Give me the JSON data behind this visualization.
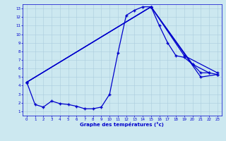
{
  "xlabel": "Graphe des températures (°c)",
  "bg_color": "#cce8f0",
  "line_color": "#0000cc",
  "grid_color": "#aaccdd",
  "xlim": [
    -0.5,
    23.5
  ],
  "ylim": [
    0.5,
    13.5
  ],
  "xticks": [
    0,
    1,
    2,
    3,
    4,
    5,
    6,
    7,
    8,
    9,
    10,
    11,
    12,
    13,
    14,
    15,
    16,
    17,
    18,
    19,
    20,
    21,
    22,
    23
  ],
  "yticks": [
    1,
    2,
    3,
    4,
    5,
    6,
    7,
    8,
    9,
    10,
    11,
    12,
    13
  ],
  "line1_x": [
    0,
    1,
    2,
    3,
    4,
    5,
    6,
    7,
    8,
    9,
    10,
    11,
    12,
    13,
    14,
    15,
    16,
    17,
    18,
    19,
    20,
    21,
    22,
    23
  ],
  "line1_y": [
    4.4,
    1.8,
    1.5,
    2.2,
    1.9,
    1.8,
    1.6,
    1.3,
    1.3,
    1.5,
    3.0,
    7.8,
    12.2,
    12.8,
    13.2,
    13.2,
    11.0,
    9.0,
    7.5,
    7.3,
    6.5,
    5.5,
    5.5,
    5.3
  ],
  "line2_x": [
    0,
    15,
    19,
    23
  ],
  "line2_y": [
    4.4,
    13.2,
    7.5,
    5.5
  ],
  "line3_x": [
    0,
    15,
    20,
    22
  ],
  "line3_y": [
    4.4,
    13.2,
    6.5,
    5.5
  ],
  "line4_x": [
    0,
    15,
    21,
    23
  ],
  "line4_y": [
    4.4,
    13.2,
    5.0,
    5.3
  ]
}
